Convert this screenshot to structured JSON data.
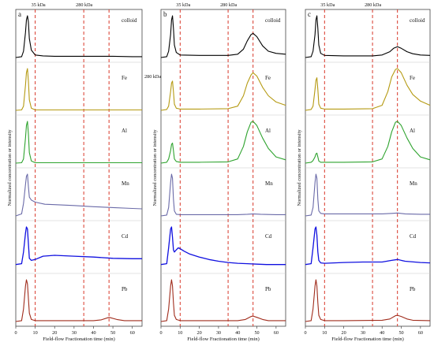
{
  "chart_data": [
    {
      "type": "line",
      "panel_label": "a",
      "xlabel": "Field-flow Fractionation time (min)",
      "ylabel": "Normalized concentration or intensity",
      "xlim": [
        0,
        65
      ],
      "x_ticks": [
        "0",
        "10",
        "20",
        "30",
        "40",
        "50",
        "60"
      ],
      "top_labels": [
        "35 kDa",
        "280 kDa"
      ],
      "reference_lines_x": [
        10,
        35,
        48
      ],
      "series": [
        {
          "name": "colloid",
          "color": "#000000",
          "x": [
            0,
            3,
            4,
            5,
            5.5,
            6,
            6.5,
            7,
            8,
            10,
            14,
            20,
            30,
            40,
            50,
            60,
            65
          ],
          "y": [
            0,
            0.02,
            0.15,
            0.6,
            0.9,
            1.0,
            0.85,
            0.45,
            0.18,
            0.06,
            0.04,
            0.03,
            0.03,
            0.03,
            0.03,
            0.02,
            0.02
          ]
        },
        {
          "name": "Fe",
          "color": "#b59a12",
          "x": [
            0,
            3,
            4,
            5,
            5.5,
            6,
            6.5,
            7,
            8,
            10,
            20,
            40,
            65
          ],
          "y": [
            0,
            0.01,
            0.1,
            0.6,
            0.9,
            1.0,
            0.7,
            0.25,
            0.05,
            0.01,
            0.01,
            0.01,
            0.01
          ]
        },
        {
          "name": "Al",
          "color": "#2ea32e",
          "x": [
            0,
            3,
            4,
            5,
            5.5,
            6,
            6.5,
            7,
            8,
            10,
            20,
            40,
            65
          ],
          "y": [
            0,
            0.01,
            0.1,
            0.6,
            0.9,
            1.0,
            0.7,
            0.25,
            0.05,
            0.01,
            0.01,
            0.01,
            0.01
          ]
        },
        {
          "name": "Mn",
          "color": "#6a6aa8",
          "x": [
            0,
            3,
            4,
            5,
            5.5,
            6,
            6.5,
            7,
            8,
            10,
            15,
            20,
            30,
            40,
            50,
            60,
            65
          ],
          "y": [
            0,
            0.05,
            0.3,
            0.75,
            0.95,
            1.0,
            0.7,
            0.45,
            0.38,
            0.33,
            0.28,
            0.27,
            0.25,
            0.22,
            0.2,
            0.18,
            0.17
          ]
        },
        {
          "name": "Cd",
          "color": "#1010e0",
          "x": [
            0,
            3,
            4,
            5,
            5.5,
            6,
            6.5,
            7,
            8,
            10,
            14,
            20,
            30,
            40,
            50,
            60,
            65
          ],
          "y": [
            0.1,
            0.12,
            0.4,
            0.85,
            1.0,
            0.95,
            0.6,
            0.25,
            0.2,
            0.22,
            0.3,
            0.32,
            0.3,
            0.28,
            0.25,
            0.24,
            0.24
          ]
        },
        {
          "name": "Pb",
          "color": "#a02c1c",
          "x": [
            0,
            3,
            4,
            5,
            5.5,
            6,
            6.5,
            7,
            8,
            10,
            20,
            40,
            44,
            48,
            52,
            56,
            65
          ],
          "y": [
            0,
            0.02,
            0.3,
            0.85,
            1.0,
            0.9,
            0.55,
            0.2,
            0.05,
            0.02,
            0.02,
            0.02,
            0.04,
            0.1,
            0.05,
            0.02,
            0.02
          ]
        }
      ]
    },
    {
      "type": "line",
      "panel_label": "b",
      "xlabel": "Field-flow Fractionation time (min)",
      "ylabel": "Normalized concentration or intensity",
      "xlim": [
        0,
        65
      ],
      "x_ticks": [
        "0",
        "10",
        "20",
        "30",
        "40",
        "50",
        "60"
      ],
      "top_labels": [
        "35 kDa",
        "280 kDa"
      ],
      "extra_label": "280 kDa",
      "reference_lines_x": [
        10,
        35,
        48
      ],
      "series": [
        {
          "name": "colloid",
          "color": "#000000",
          "x": [
            0,
            3,
            4,
            5,
            5.5,
            6,
            6.5,
            7,
            8,
            10,
            20,
            35,
            40,
            43,
            45,
            47,
            48,
            50,
            53,
            56,
            60,
            65
          ],
          "y": [
            0,
            0.02,
            0.15,
            0.55,
            0.9,
            1.0,
            0.7,
            0.3,
            0.12,
            0.06,
            0.05,
            0.05,
            0.08,
            0.2,
            0.4,
            0.55,
            0.58,
            0.5,
            0.28,
            0.15,
            0.1,
            0.08
          ]
        },
        {
          "name": "Fe",
          "color": "#b59a12",
          "x": [
            0,
            3,
            4,
            5,
            5.5,
            6,
            6.5,
            7,
            8,
            10,
            20,
            35,
            40,
            43,
            45,
            47,
            48,
            50,
            53,
            56,
            60,
            65
          ],
          "y": [
            0,
            0.02,
            0.1,
            0.45,
            0.65,
            0.7,
            0.45,
            0.15,
            0.05,
            0.03,
            0.03,
            0.04,
            0.1,
            0.35,
            0.65,
            0.85,
            0.9,
            0.82,
            0.55,
            0.35,
            0.2,
            0.12
          ]
        },
        {
          "name": "Al",
          "color": "#2ea32e",
          "x": [
            0,
            3,
            4,
            5,
            5.5,
            6,
            6.5,
            7,
            8,
            10,
            20,
            35,
            40,
            43,
            45,
            47,
            48,
            50,
            53,
            56,
            60,
            65
          ],
          "y": [
            0,
            0.02,
            0.1,
            0.3,
            0.45,
            0.48,
            0.3,
            0.1,
            0.04,
            0.02,
            0.02,
            0.03,
            0.1,
            0.4,
            0.75,
            0.98,
            1.0,
            0.9,
            0.6,
            0.35,
            0.15,
            0.08
          ]
        },
        {
          "name": "Mn",
          "color": "#6a6aa8",
          "x": [
            0,
            3,
            4,
            5,
            5.5,
            6,
            6.5,
            7,
            8,
            10,
            20,
            40,
            45,
            48,
            52,
            60,
            65
          ],
          "y": [
            0,
            0.02,
            0.2,
            0.8,
            1.0,
            0.9,
            0.4,
            0.12,
            0.04,
            0.03,
            0.03,
            0.03,
            0.04,
            0.05,
            0.04,
            0.03,
            0.03
          ]
        },
        {
          "name": "Cd",
          "color": "#1010e0",
          "x": [
            0,
            3,
            4,
            5,
            5.5,
            6,
            6.5,
            7,
            8,
            9,
            10,
            12,
            15,
            20,
            25,
            30,
            35,
            40,
            45,
            50,
            55,
            60,
            65
          ],
          "y": [
            0.1,
            0.12,
            0.5,
            0.95,
            1.0,
            0.75,
            0.45,
            0.4,
            0.45,
            0.5,
            0.48,
            0.42,
            0.35,
            0.28,
            0.22,
            0.18,
            0.15,
            0.13,
            0.12,
            0.11,
            0.1,
            0.1,
            0.1
          ]
        },
        {
          "name": "Pb",
          "color": "#a02c1c",
          "x": [
            0,
            3,
            4,
            5,
            5.5,
            6,
            6.5,
            7,
            8,
            10,
            20,
            40,
            44,
            47,
            48,
            50,
            53,
            56,
            65
          ],
          "y": [
            0,
            0.02,
            0.3,
            0.85,
            1.0,
            0.85,
            0.45,
            0.15,
            0.05,
            0.02,
            0.02,
            0.02,
            0.05,
            0.12,
            0.13,
            0.1,
            0.05,
            0.02,
            0.02
          ]
        }
      ]
    },
    {
      "type": "line",
      "panel_label": "c",
      "xlabel": "Field-flow Fractionation time (min)",
      "ylabel": "Normalized concentration or intensity",
      "xlim": [
        0,
        65
      ],
      "x_ticks": [
        "0",
        "10",
        "20",
        "30",
        "40",
        "50",
        "60"
      ],
      "top_labels": [
        "35 kDa",
        "280 kDa"
      ],
      "reference_lines_x": [
        10,
        35,
        48
      ],
      "series": [
        {
          "name": "colloid",
          "color": "#000000",
          "x": [
            0,
            3,
            4,
            5,
            5.5,
            6,
            6.5,
            7,
            8,
            10,
            20,
            35,
            40,
            44,
            46,
            48,
            50,
            53,
            56,
            60,
            65
          ],
          "y": [
            0,
            0.02,
            0.15,
            0.55,
            0.9,
            1.0,
            0.7,
            0.3,
            0.1,
            0.05,
            0.04,
            0.04,
            0.06,
            0.14,
            0.22,
            0.26,
            0.22,
            0.14,
            0.09,
            0.06,
            0.05
          ]
        },
        {
          "name": "Fe",
          "color": "#b59a12",
          "x": [
            0,
            3,
            4,
            5,
            5.5,
            6,
            6.5,
            7,
            8,
            10,
            20,
            35,
            40,
            43,
            45,
            47,
            48,
            50,
            53,
            56,
            60,
            65
          ],
          "y": [
            0,
            0.02,
            0.1,
            0.5,
            0.72,
            0.78,
            0.5,
            0.15,
            0.05,
            0.03,
            0.03,
            0.04,
            0.12,
            0.45,
            0.8,
            0.98,
            1.0,
            0.9,
            0.6,
            0.38,
            0.22,
            0.12
          ]
        },
        {
          "name": "Al",
          "color": "#2ea32e",
          "x": [
            0,
            3,
            4,
            5,
            5.5,
            6,
            6.5,
            7,
            8,
            10,
            20,
            35,
            40,
            43,
            45,
            47,
            48,
            50,
            53,
            56,
            60,
            65
          ],
          "y": [
            0,
            0.02,
            0.06,
            0.15,
            0.22,
            0.24,
            0.15,
            0.05,
            0.02,
            0.02,
            0.02,
            0.03,
            0.1,
            0.4,
            0.75,
            0.98,
            1.0,
            0.9,
            0.6,
            0.35,
            0.15,
            0.08
          ]
        },
        {
          "name": "Mn",
          "color": "#6a6aa8",
          "x": [
            0,
            3,
            4,
            5,
            5.5,
            6,
            6.5,
            7,
            8,
            10,
            20,
            40,
            45,
            48,
            52,
            60,
            65
          ],
          "y": [
            0,
            0.02,
            0.2,
            0.8,
            1.0,
            0.9,
            0.4,
            0.12,
            0.06,
            0.05,
            0.05,
            0.05,
            0.06,
            0.07,
            0.05,
            0.04,
            0.04
          ]
        },
        {
          "name": "Cd",
          "color": "#1010e0",
          "x": [
            0,
            3,
            4,
            5,
            5.5,
            6,
            6.5,
            7,
            8,
            10,
            20,
            30,
            40,
            45,
            48,
            52,
            60,
            65
          ],
          "y": [
            0.1,
            0.12,
            0.5,
            0.95,
            1.0,
            0.8,
            0.4,
            0.2,
            0.14,
            0.13,
            0.15,
            0.16,
            0.16,
            0.2,
            0.22,
            0.18,
            0.15,
            0.14
          ]
        },
        {
          "name": "Pb",
          "color": "#a02c1c",
          "x": [
            0,
            3,
            4,
            5,
            5.5,
            6,
            6.5,
            7,
            8,
            10,
            20,
            40,
            44,
            47,
            48,
            50,
            53,
            56,
            65
          ],
          "y": [
            0,
            0.02,
            0.3,
            0.85,
            1.0,
            0.85,
            0.45,
            0.15,
            0.05,
            0.02,
            0.02,
            0.03,
            0.06,
            0.14,
            0.15,
            0.12,
            0.06,
            0.03,
            0.02
          ]
        }
      ]
    }
  ]
}
